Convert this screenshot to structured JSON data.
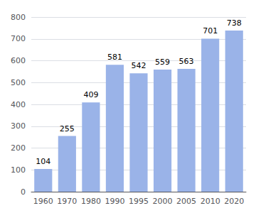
{
  "chart_data": {
    "type": "bar",
    "categories": [
      "1960",
      "1970",
      "1980",
      "1990",
      "1995",
      "2000",
      "2005",
      "2010",
      "2020"
    ],
    "values": [
      104,
      255,
      409,
      581,
      542,
      559,
      563,
      701,
      738
    ],
    "color": "#9ab3e8",
    "ylim": [
      0,
      800
    ],
    "yticks": [
      0,
      100,
      200,
      300,
      400,
      500,
      600,
      700,
      800
    ],
    "grid": true,
    "data_labels": true
  }
}
